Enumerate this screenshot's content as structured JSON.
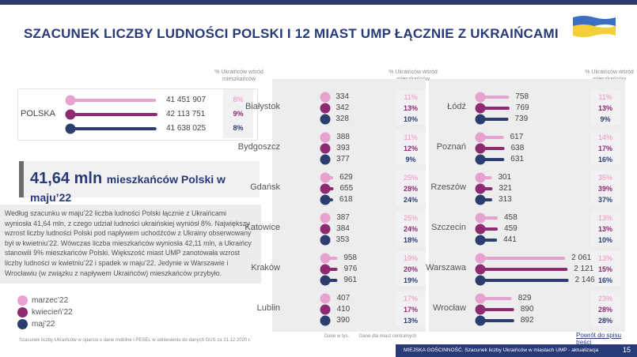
{
  "title": "SZACUNEK LICZBY LUDNOŚCI POLSKI I 12 MIAST UMP ŁĄCZNIE Z UKRAIŃCAMI",
  "pct_header": "% Ukraińców wśród mieszkańców",
  "colors": {
    "marzec": "#e8a2cf",
    "kwiecien": "#8e2a72",
    "maj": "#2c3e70",
    "accent": "#283a78"
  },
  "headline": {
    "big": "41,64 mln",
    "small": "mieszkańców Polski w maju’22"
  },
  "description": "Według szacunku w maju’22 liczba ludności Polski łącznie z Ukraińcami wyniosła 41,64 mln, z czego udział ludności ukraińskiej wyniósł 8%. Największy wzrost liczby ludności Polski pod napływem uchodźców z Ukrainy obserwowany był w kwietniu’22. Wówczas liczba mieszkańców wyniosła 42,11 mln, a Ukraińcy stanowili 9% mieszkańców Polski. Większość miast UMP zanotowała wzrost liczby ludności w kwietniu’22 i spadek w maju’22. Jedynie w Warszawie i Wrocławiu (w związku z napływem Ukraińców) mieszkańców przybyło.",
  "legend": [
    "marzec’22",
    "kwiecień’22",
    "maj’22"
  ],
  "footnote_left": "Szacunek liczby Ukraińców w oparciu o dane mobilne i PESEL w odniesieniu do danych GUS za 31.12.2020 r.",
  "footnote_units": "Dane w tys.",
  "footnote_centers": "Dane dla miast centralnych",
  "link": "Powrót do spisu treści",
  "footer": {
    "text": "MIEJSKA GOŚCINNOŚĆ. Szacunek liczby Ukraińców w miastach UMP - aktualizacja",
    "page": "15"
  },
  "chart_data": {
    "type": "bar",
    "poland": {
      "name": "POLSKA",
      "values": [
        "41 451 907",
        "42 113 751",
        "41 638 025"
      ],
      "nums": [
        41451907,
        42113751,
        41638025
      ],
      "pct": [
        "8%",
        "9%",
        "8%"
      ]
    },
    "series_names": [
      "marzec’22",
      "kwiecień’22",
      "maj’22"
    ],
    "cities": [
      {
        "name": "Białystok",
        "values": [
          "334",
          "342",
          "328"
        ],
        "nums": [
          334,
          342,
          328
        ],
        "pct": [
          "11%",
          "13%",
          "10%"
        ]
      },
      {
        "name": "Bydgoszcz",
        "values": [
          "388",
          "393",
          "377"
        ],
        "nums": [
          388,
          393,
          377
        ],
        "pct": [
          "11%",
          "12%",
          "9%"
        ]
      },
      {
        "name": "Gdańsk",
        "values": [
          "629",
          "655",
          "618"
        ],
        "nums": [
          629,
          655,
          618
        ],
        "pct": [
          "25%",
          "28%",
          "24%"
        ]
      },
      {
        "name": "Katowice",
        "values": [
          "387",
          "384",
          "353"
        ],
        "nums": [
          387,
          384,
          353
        ],
        "pct": [
          "25%",
          "24%",
          "18%"
        ]
      },
      {
        "name": "Kraków",
        "values": [
          "958",
          "976",
          "961"
        ],
        "nums": [
          958,
          976,
          961
        ],
        "pct": [
          "19%",
          "20%",
          "19%"
        ]
      },
      {
        "name": "Lublin",
        "values": [
          "407",
          "410",
          "390"
        ],
        "nums": [
          407,
          410,
          390
        ],
        "pct": [
          "17%",
          "17%",
          "13%"
        ]
      },
      {
        "name": "Łódź",
        "values": [
          "758",
          "769",
          "739"
        ],
        "nums": [
          758,
          769,
          739
        ],
        "pct": [
          "11%",
          "13%",
          "9%"
        ]
      },
      {
        "name": "Poznań",
        "values": [
          "617",
          "638",
          "631"
        ],
        "nums": [
          617,
          638,
          631
        ],
        "pct": [
          "14%",
          "17%",
          "16%"
        ]
      },
      {
        "name": "Rzeszów",
        "values": [
          "301",
          "321",
          "313"
        ],
        "nums": [
          301,
          321,
          313
        ],
        "pct": [
          "35%",
          "39%",
          "37%"
        ]
      },
      {
        "name": "Szczecin",
        "values": [
          "458",
          "459",
          "441"
        ],
        "nums": [
          458,
          459,
          441
        ],
        "pct": [
          "13%",
          "13%",
          "10%"
        ]
      },
      {
        "name": "Warszawa",
        "values": [
          "2 061",
          "2 121",
          "2 146"
        ],
        "nums": [
          2061,
          2121,
          2146
        ],
        "pct": [
          "13%",
          "15%",
          "16%"
        ]
      },
      {
        "name": "Wrocław",
        "values": [
          "829",
          "890",
          "892"
        ],
        "nums": [
          829,
          890,
          892
        ],
        "pct": [
          "23%",
          "28%",
          "28%"
        ]
      }
    ]
  }
}
